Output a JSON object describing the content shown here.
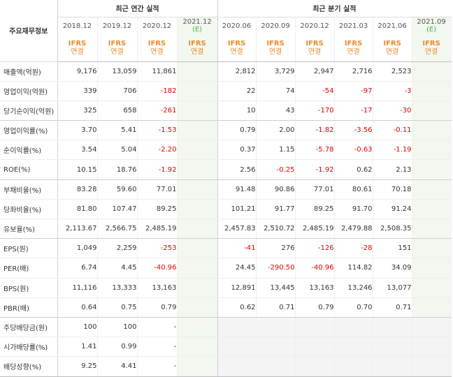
{
  "table": {
    "label_header": "주요재무정보",
    "annual_header": "최근 연간 실적",
    "quarterly_header": "최근 분기 실적",
    "annual_periods": [
      "2018.12",
      "2019.12",
      "2020.12",
      "2021.12"
    ],
    "annual_estimate_mark": "(E)",
    "quarterly_periods": [
      "2020.06",
      "2020.09",
      "2020.12",
      "2021.03",
      "2021.06",
      "2021.09"
    ],
    "quarterly_estimate_mark": "(E)",
    "basis_top": "IFRS",
    "basis_bottom": "연결",
    "rows": [
      {
        "label": "매출액(억원)",
        "values": [
          "9,176",
          "13,059",
          "11,861",
          "",
          "2,812",
          "3,729",
          "2,947",
          "2,716",
          "2,523",
          ""
        ]
      },
      {
        "label": "영업이익(억원)",
        "values": [
          "339",
          "706",
          "-182",
          "",
          "22",
          "74",
          "-54",
          "-97",
          "-3",
          ""
        ]
      },
      {
        "label": "당기순이익(억원)",
        "values": [
          "325",
          "658",
          "-261",
          "",
          "10",
          "43",
          "-170",
          "-17",
          "-30",
          ""
        ]
      },
      {
        "label": "영업이익률(%)",
        "values": [
          "3.70",
          "5.41",
          "-1.53",
          "",
          "0.79",
          "2.00",
          "-1.82",
          "-3.56",
          "-0.11",
          ""
        ]
      },
      {
        "label": "순이익률(%)",
        "values": [
          "3.54",
          "5.04",
          "-2.20",
          "",
          "0.37",
          "1.15",
          "-5.78",
          "-0.63",
          "-1.19",
          ""
        ]
      },
      {
        "label": "ROE(%)",
        "values": [
          "10.15",
          "18.76",
          "-1.92",
          "",
          "2.56",
          "-0.25",
          "-1.92",
          "0.62",
          "2.13",
          ""
        ]
      },
      {
        "label": "부채비율(%)",
        "values": [
          "83.28",
          "59.60",
          "77.01",
          "",
          "91.48",
          "90.86",
          "77.01",
          "80.61",
          "70.18",
          ""
        ]
      },
      {
        "label": "당좌비율(%)",
        "values": [
          "81.80",
          "107.47",
          "89.25",
          "",
          "101.21",
          "91.77",
          "89.25",
          "91.70",
          "91.24",
          ""
        ]
      },
      {
        "label": "유보율(%)",
        "values": [
          "2,113.67",
          "2,566.75",
          "2,485.19",
          "",
          "2,457.83",
          "2,510.72",
          "2,485.19",
          "2,479.88",
          "2,508.35",
          ""
        ]
      },
      {
        "label": "EPS(원)",
        "values": [
          "1,049",
          "2,259",
          "-253",
          "",
          "-41",
          "276",
          "-126",
          "-28",
          "151",
          ""
        ]
      },
      {
        "label": "PER(배)",
        "values": [
          "6.74",
          "4.45",
          "-40.96",
          "",
          "24.45",
          "-290.50",
          "-40.96",
          "114.82",
          "34.09",
          ""
        ]
      },
      {
        "label": "BPS(원)",
        "values": [
          "11,116",
          "13,333",
          "13,163",
          "",
          "12,891",
          "13,445",
          "13,163",
          "13,246",
          "13,077",
          ""
        ]
      },
      {
        "label": "PBR(배)",
        "values": [
          "0.64",
          "0.75",
          "0.79",
          "",
          "0.62",
          "0.71",
          "0.79",
          "0.70",
          "0.71",
          ""
        ]
      },
      {
        "label": "주당배당금(원)",
        "values": [
          "100",
          "100",
          "-",
          "",
          "",
          "",
          "",
          "",
          "",
          ""
        ]
      },
      {
        "label": "시가배당률(%)",
        "values": [
          "1.41",
          "0.99",
          "-",
          "",
          "",
          "",
          "",
          "",
          "",
          ""
        ]
      },
      {
        "label": "배당성향(%)",
        "values": [
          "9.25",
          "4.41",
          "-",
          "",
          "",
          "",
          "",
          "",
          "",
          ""
        ]
      }
    ],
    "colors": {
      "negative": "#e60000",
      "ifrs": "#f08a2c",
      "estimate": "#4caf50",
      "estimate_bg": "#f2f8ef",
      "empty_bg": "#f4f4f4"
    }
  }
}
